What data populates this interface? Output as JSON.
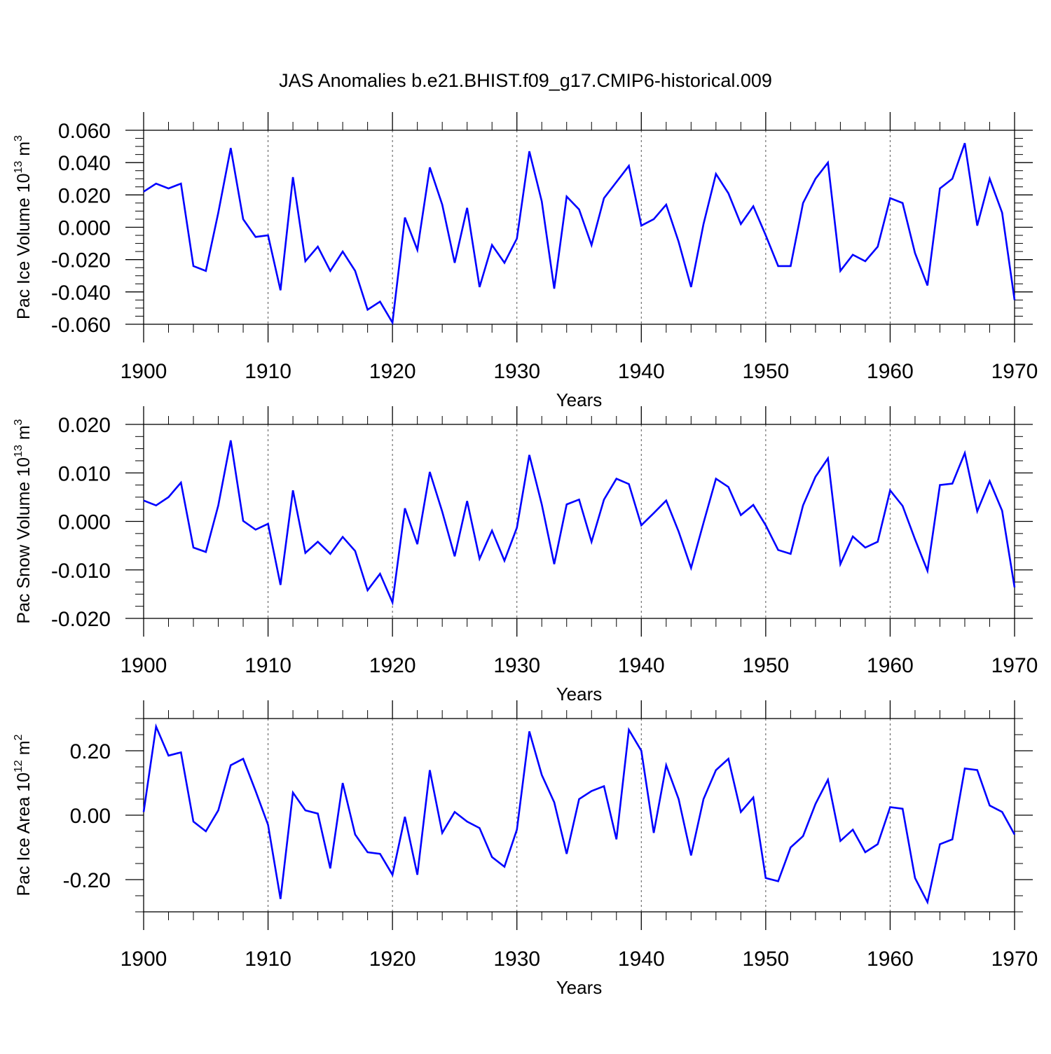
{
  "page_title": "JAS Anomalies b.e21.BHIST.f09_g17.CMIP6-historical.009",
  "chart_data": [
    {
      "type": "line",
      "title": "JAS Anomalies b.e21.BHIST.f09_g17.CMIP6-historical.009",
      "ylabel_main": "Pac Ice Volume 10",
      "ylabel_exp": "13",
      "ylabel_unit": " m",
      "ylabel_unit_exp": "3",
      "xlabel": "Years",
      "xlim": [
        1900,
        1970
      ],
      "ylim": [
        -0.06,
        0.06
      ],
      "xticks": [
        1900,
        1910,
        1920,
        1930,
        1940,
        1950,
        1960,
        1970
      ],
      "xtick_labels": [
        "1900",
        "1910",
        "1920",
        "1930",
        "1940",
        "1950",
        "1960",
        "1970"
      ],
      "yticks": [
        -0.06,
        -0.04,
        -0.02,
        0.0,
        0.02,
        0.04,
        0.06
      ],
      "ytick_labels": [
        "-0.060",
        "-0.040",
        "-0.020",
        "0.000",
        "0.020",
        "0.040",
        "0.060"
      ],
      "yminor_step": 0.005,
      "line_color": "#0000ff",
      "series": [
        {
          "name": "Pac Ice Volume",
          "x": [
            1900,
            1901,
            1902,
            1903,
            1904,
            1905,
            1906,
            1907,
            1908,
            1909,
            1910,
            1911,
            1912,
            1913,
            1914,
            1915,
            1916,
            1917,
            1918,
            1919,
            1920,
            1921,
            1922,
            1923,
            1924,
            1925,
            1926,
            1927,
            1928,
            1929,
            1930,
            1931,
            1932,
            1933,
            1934,
            1935,
            1936,
            1937,
            1938,
            1939,
            1940,
            1941,
            1942,
            1943,
            1944,
            1945,
            1946,
            1947,
            1948,
            1949,
            1950,
            1951,
            1952,
            1953,
            1954,
            1955,
            1956,
            1957,
            1958,
            1959,
            1960,
            1961,
            1962,
            1963,
            1964,
            1965,
            1966,
            1967,
            1968,
            1969,
            1970
          ],
          "values": [
            0.022,
            0.027,
            0.024,
            0.027,
            -0.024,
            -0.027,
            0.009,
            0.049,
            0.005,
            -0.006,
            -0.005,
            -0.039,
            0.031,
            -0.021,
            -0.012,
            -0.027,
            -0.015,
            -0.027,
            -0.051,
            -0.046,
            -0.059,
            0.006,
            -0.014,
            0.037,
            0.014,
            -0.022,
            0.012,
            -0.037,
            -0.011,
            -0.022,
            -0.007,
            0.047,
            0.016,
            -0.038,
            0.019,
            0.011,
            -0.011,
            0.018,
            0.028,
            0.038,
            0.001,
            0.005,
            0.014,
            -0.009,
            -0.037,
            0.002,
            0.033,
            0.021,
            0.002,
            0.013,
            -0.005,
            -0.024,
            -0.024,
            0.015,
            0.03,
            0.04,
            -0.027,
            -0.017,
            -0.021,
            -0.012,
            0.018,
            0.015,
            -0.016,
            -0.036,
            0.024,
            0.03,
            0.052,
            0.001,
            0.03,
            0.009,
            -0.045
          ]
        }
      ]
    },
    {
      "type": "line",
      "ylabel_main": "Pac Snow Volume 10",
      "ylabel_exp": "13",
      "ylabel_unit": " m",
      "ylabel_unit_exp": "3",
      "xlabel": "Years",
      "xlim": [
        1900,
        1970
      ],
      "ylim": [
        -0.02,
        0.02
      ],
      "xticks": [
        1900,
        1910,
        1920,
        1930,
        1940,
        1950,
        1960,
        1970
      ],
      "xtick_labels": [
        "1900",
        "1910",
        "1920",
        "1930",
        "1940",
        "1950",
        "1960",
        "1970"
      ],
      "yticks": [
        -0.02,
        -0.01,
        0.0,
        0.01,
        0.02
      ],
      "ytick_labels": [
        "-0.020",
        "-0.010",
        "0.000",
        "0.010",
        "0.020"
      ],
      "yminor_step": 0.0025,
      "line_color": "#0000ff",
      "series": [
        {
          "name": "Pac Snow Volume",
          "x": [
            1900,
            1901,
            1902,
            1903,
            1904,
            1905,
            1906,
            1907,
            1908,
            1909,
            1910,
            1911,
            1912,
            1913,
            1914,
            1915,
            1916,
            1917,
            1918,
            1919,
            1920,
            1921,
            1922,
            1923,
            1924,
            1925,
            1926,
            1927,
            1928,
            1929,
            1930,
            1931,
            1932,
            1933,
            1934,
            1935,
            1936,
            1937,
            1938,
            1939,
            1940,
            1941,
            1942,
            1943,
            1944,
            1945,
            1946,
            1947,
            1948,
            1949,
            1950,
            1951,
            1952,
            1953,
            1954,
            1955,
            1956,
            1957,
            1958,
            1959,
            1960,
            1961,
            1962,
            1963,
            1964,
            1965,
            1966,
            1967,
            1968,
            1969,
            1970
          ],
          "values": [
            0.0043,
            0.0033,
            0.005,
            0.008,
            -0.0054,
            -0.0063,
            0.0033,
            0.0167,
            0.0001,
            -0.0017,
            -0.0005,
            -0.0131,
            0.0064,
            -0.0065,
            -0.0042,
            -0.0067,
            -0.0032,
            -0.0061,
            -0.0142,
            -0.0108,
            -0.0167,
            0.0027,
            -0.0047,
            0.0102,
            0.002,
            -0.0072,
            0.0042,
            -0.0077,
            -0.0019,
            -0.0081,
            -0.0013,
            0.0137,
            0.0035,
            -0.0088,
            0.0035,
            0.0045,
            -0.0042,
            0.0045,
            0.0088,
            0.0077,
            -0.0008,
            0.0017,
            0.0043,
            -0.0021,
            -0.0096,
            -0.0003,
            0.0088,
            0.0071,
            0.0013,
            0.0034,
            -0.0008,
            -0.0059,
            -0.0067,
            0.0033,
            0.0092,
            0.013,
            -0.0088,
            -0.0031,
            -0.0054,
            -0.0042,
            0.0064,
            0.0032,
            -0.0037,
            -0.0102,
            0.0075,
            0.0078,
            0.0141,
            0.0021,
            0.0083,
            0.0022,
            -0.0136
          ]
        }
      ]
    },
    {
      "type": "line",
      "ylabel_main": "Pac Ice Area 10",
      "ylabel_exp": "12",
      "ylabel_unit": " m",
      "ylabel_unit_exp": "2",
      "xlabel": "Years",
      "xlim": [
        1900,
        1970
      ],
      "ylim": [
        -0.3,
        0.3
      ],
      "xticks": [
        1900,
        1910,
        1920,
        1930,
        1940,
        1950,
        1960,
        1970
      ],
      "xtick_labels": [
        "1900",
        "1910",
        "1920",
        "1930",
        "1940",
        "1950",
        "1960",
        "1970"
      ],
      "yticks": [
        -0.2,
        0.0,
        0.2
      ],
      "ytick_labels": [
        "-0.20",
        "0.00",
        "0.20"
      ],
      "yminor_step": 0.05,
      "line_color": "#0000ff",
      "series": [
        {
          "name": "Pac Ice Area",
          "x": [
            1900,
            1901,
            1902,
            1903,
            1904,
            1905,
            1906,
            1907,
            1908,
            1909,
            1910,
            1911,
            1912,
            1913,
            1914,
            1915,
            1916,
            1917,
            1918,
            1919,
            1920,
            1921,
            1922,
            1923,
            1924,
            1925,
            1926,
            1927,
            1928,
            1929,
            1930,
            1931,
            1932,
            1933,
            1934,
            1935,
            1936,
            1937,
            1938,
            1939,
            1940,
            1941,
            1942,
            1943,
            1944,
            1945,
            1946,
            1947,
            1948,
            1949,
            1950,
            1951,
            1952,
            1953,
            1954,
            1955,
            1956,
            1957,
            1958,
            1959,
            1960,
            1961,
            1962,
            1963,
            1964,
            1965,
            1966,
            1967,
            1968,
            1969,
            1970
          ],
          "values": [
            0.01,
            0.275,
            0.185,
            0.195,
            -0.02,
            -0.05,
            0.015,
            0.155,
            0.175,
            0.075,
            -0.03,
            -0.26,
            0.07,
            0.015,
            0.005,
            -0.165,
            0.1,
            -0.06,
            -0.115,
            -0.12,
            -0.185,
            -0.005,
            -0.185,
            0.14,
            -0.055,
            0.01,
            -0.02,
            -0.04,
            -0.13,
            -0.16,
            -0.045,
            0.26,
            0.125,
            0.04,
            -0.12,
            0.05,
            0.075,
            0.09,
            -0.075,
            0.265,
            0.2,
            -0.055,
            0.155,
            0.05,
            -0.125,
            0.05,
            0.14,
            0.175,
            0.01,
            0.055,
            -0.195,
            -0.205,
            -0.1,
            -0.065,
            0.035,
            0.11,
            -0.08,
            -0.045,
            -0.115,
            -0.09,
            0.025,
            0.02,
            -0.195,
            -0.27,
            -0.09,
            -0.075,
            0.145,
            0.14,
            0.03,
            0.01,
            -0.06
          ]
        }
      ]
    }
  ]
}
